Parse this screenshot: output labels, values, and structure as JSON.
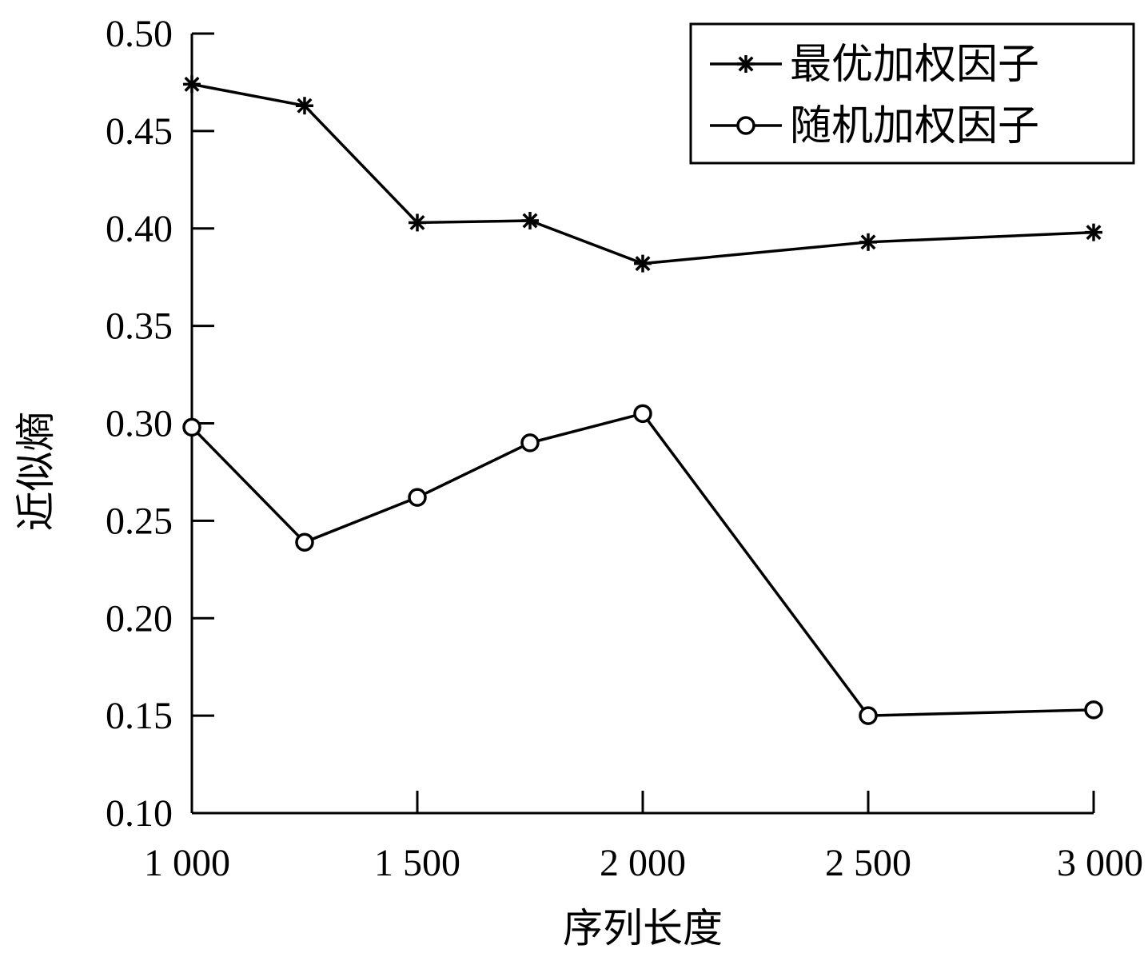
{
  "chart_data": {
    "type": "line",
    "title": "",
    "xlabel": "序列长度",
    "ylabel": "近似熵",
    "xlim": [
      1000,
      3000
    ],
    "ylim": [
      0.1,
      0.5
    ],
    "x_ticks": [
      1000,
      1500,
      2000,
      2500,
      3000
    ],
    "x_tick_labels": [
      "1 000",
      "1 500",
      "2 000",
      "2 500",
      "3 000"
    ],
    "y_ticks": [
      0.1,
      0.15,
      0.2,
      0.25,
      0.3,
      0.35,
      0.4,
      0.45,
      0.5
    ],
    "y_tick_labels": [
      "0.10",
      "0.15",
      "0.20",
      "0.25",
      "0.30",
      "0.35",
      "0.40",
      "0.45",
      "0.50"
    ],
    "grid": false,
    "legend_position": "top-right",
    "color": "#000000",
    "series": [
      {
        "name": "最优加权因子",
        "marker": "asterisk",
        "x": [
          1000,
          1250,
          1500,
          1750,
          2000,
          2500,
          3000
        ],
        "y": [
          0.474,
          0.463,
          0.403,
          0.404,
          0.382,
          0.393,
          0.398
        ]
      },
      {
        "name": "随机加权因子",
        "marker": "circle",
        "x": [
          1000,
          1250,
          1500,
          1750,
          2000,
          2500,
          3000
        ],
        "y": [
          0.298,
          0.239,
          0.262,
          0.29,
          0.305,
          0.15,
          0.153
        ]
      }
    ]
  }
}
